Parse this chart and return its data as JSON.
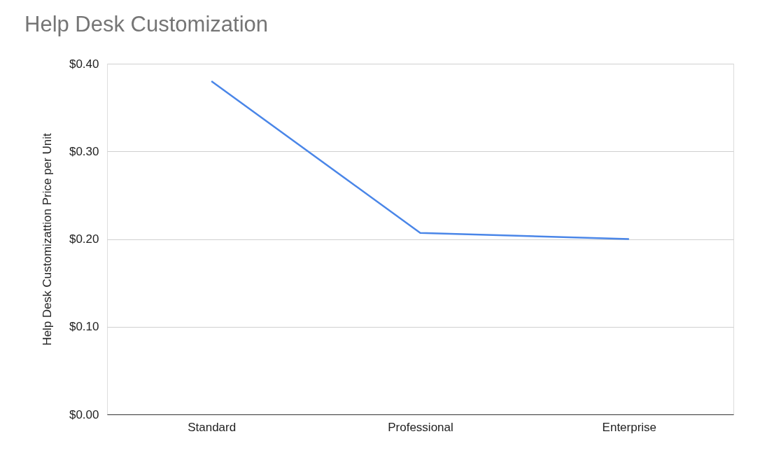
{
  "chart_data": {
    "type": "line",
    "title": "Help Desk Customization",
    "ylabel": "Help Desk Customizattion Price per Unit",
    "categories": [
      "Standard",
      "Professional",
      "Enterprise"
    ],
    "series": [
      {
        "color": "#4a86e8",
        "values": [
          0.38,
          0.207,
          0.2
        ]
      }
    ],
    "ylim": [
      0,
      0.4
    ],
    "yticks": [
      {
        "value": 0,
        "label": "$0.00"
      },
      {
        "value": 0.1,
        "label": "$0.10"
      },
      {
        "value": 0.2,
        "label": "$0.20"
      },
      {
        "value": 0.3,
        "label": "$0.30"
      },
      {
        "value": 0.4,
        "label": "$0.40"
      }
    ],
    "grid": "y",
    "legend": false,
    "marker": "none",
    "line_style": "solid"
  }
}
